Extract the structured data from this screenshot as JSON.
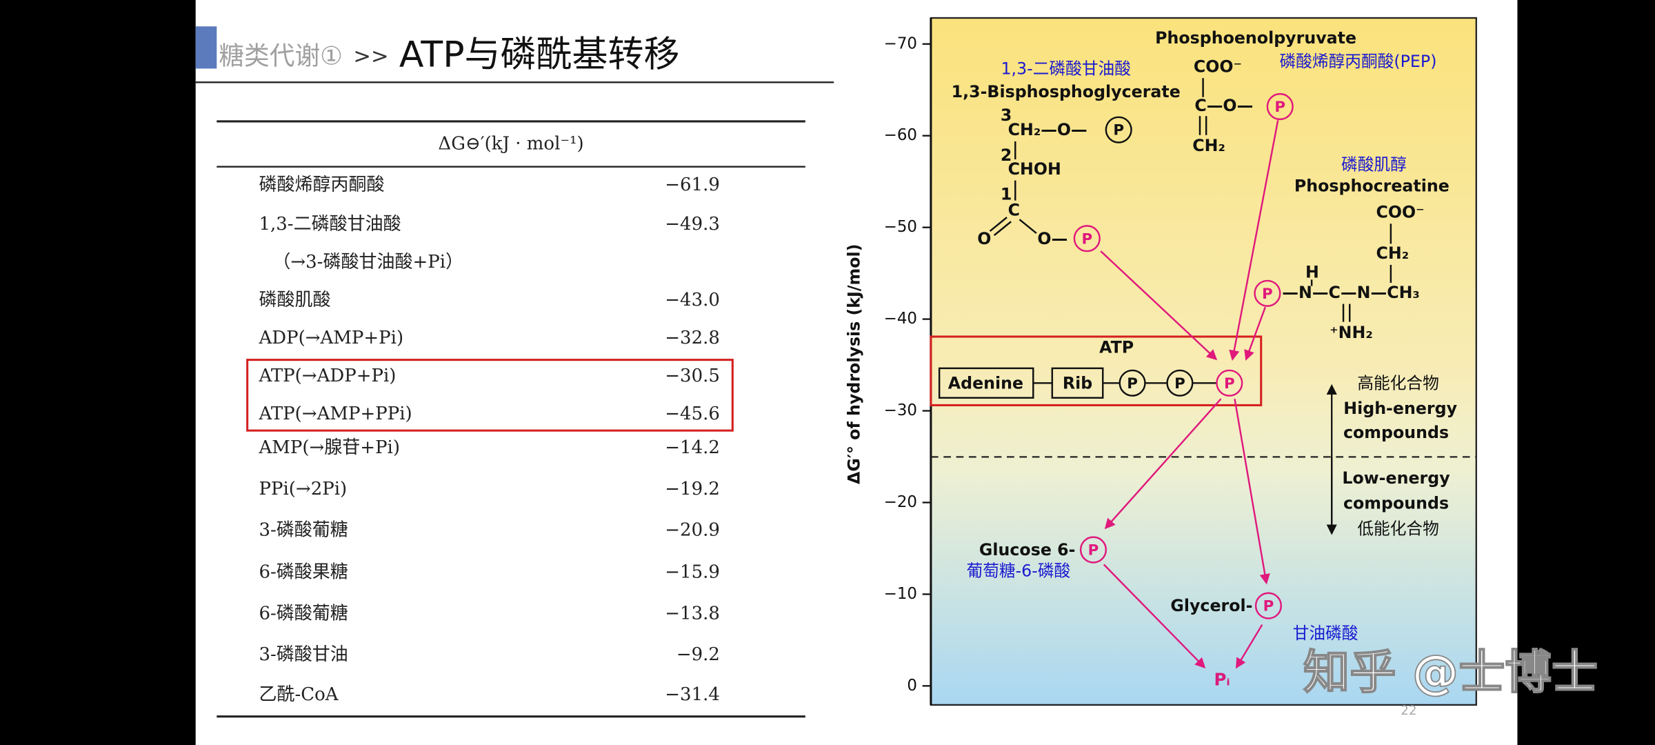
{
  "header": {
    "section": "糖类代谢①",
    "separator": ">>",
    "title": "ATP与磷酰基转移"
  },
  "table": {
    "header": "ΔG⊖′(kJ · mol⁻¹)",
    "rows": [
      {
        "name": "磷酸烯醇丙酮酸",
        "value": "−61.9"
      },
      {
        "name": "1,3-二磷酸甘油酸",
        "detail": "（→3-磷酸甘油酸+Pi）",
        "value": "−49.3"
      },
      {
        "name": "磷酸肌酸",
        "value": "−43.0"
      },
      {
        "name": "ADP(→AMP+Pi)",
        "value": "−32.8"
      },
      {
        "name": "ATP(→ADP+Pi)",
        "value": "−30.5"
      },
      {
        "name": "ATP(→AMP+PPi)",
        "value": "−45.6"
      },
      {
        "name": "AMP(→腺苷+Pi)",
        "value": "−14.2"
      },
      {
        "name": "PPi(→2Pi)",
        "value": "−19.2"
      },
      {
        "name": "3-磷酸葡糖",
        "value": "−20.9"
      },
      {
        "name": "6-磷酸果糖",
        "value": "−15.9"
      },
      {
        "name": "6-磷酸葡糖",
        "value": "−13.8"
      },
      {
        "name": "3-磷酸甘油",
        "value": "−9.2"
      },
      {
        "name": "乙酰-CoA",
        "value": "−31.4"
      }
    ]
  },
  "figure": {
    "axis_label": "ΔG′° of hydrolysis (kJ/mol)",
    "yticks": [
      {
        "value": -70,
        "label": "−70"
      },
      {
        "value": -60,
        "label": "−60"
      },
      {
        "value": -50,
        "label": "−50"
      },
      {
        "value": -40,
        "label": "−40"
      },
      {
        "value": -30,
        "label": "−30"
      },
      {
        "value": -20,
        "label": "−20"
      },
      {
        "value": -10,
        "label": "−10"
      },
      {
        "value": 0,
        "label": "0"
      }
    ],
    "phosphate": "P",
    "bpg": {
      "name_cn": "1,3-二磷酸甘油酸",
      "name": "1,3-Bisphosphoglycerate",
      "c3": "3",
      "row3": "CH₂—O—",
      "c2": "2",
      "row2": "CHOH",
      "c1": "1",
      "row1": "C",
      "oxo": "O",
      "ester": "O—"
    },
    "pep": {
      "name": "Phosphoenolpyruvate",
      "name_cn": "磷酸烯醇丙酮酸(PEP)",
      "carboxyl": "COO⁻",
      "center": "C—O—",
      "methylene": "CH₂"
    },
    "creatine": {
      "name_cn": "磷酸肌醇",
      "name": "Phosphocreatine",
      "carboxyl": "COO⁻",
      "methylene": "CH₂",
      "hydrogen": "H",
      "chain": "—N—C—N—CH₃",
      "amine": "⁺NH₂"
    },
    "atp": {
      "name": "ATP",
      "adenine": "Adenine",
      "ribose": "Rib"
    },
    "high": {
      "cn": "高能化合物",
      "en1": "High-energy",
      "en2": "compounds"
    },
    "low": {
      "en1": "Low-energy",
      "en2": "compounds",
      "cn": "低能化合物"
    },
    "glucose": {
      "name": "Glucose 6-",
      "name_cn": "葡萄糖-6-磷酸"
    },
    "glycerol": {
      "name": "Glycerol-",
      "name_cn": "甘油磷酸"
    },
    "pi": "Pᵢ"
  },
  "watermark": "知乎 @士博士",
  "page_number": "22"
}
